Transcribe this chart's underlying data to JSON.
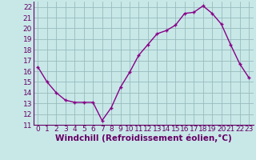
{
  "x": [
    0,
    1,
    2,
    3,
    4,
    5,
    6,
    7,
    8,
    9,
    10,
    11,
    12,
    13,
    14,
    15,
    16,
    17,
    18,
    19,
    20,
    21,
    22,
    23
  ],
  "y": [
    16.4,
    15.0,
    14.0,
    13.3,
    13.1,
    13.1,
    13.1,
    11.4,
    12.6,
    14.5,
    15.9,
    17.5,
    18.5,
    19.5,
    19.8,
    20.3,
    21.4,
    21.5,
    22.1,
    21.4,
    20.4,
    18.5,
    16.7,
    15.4
  ],
  "line_color": "#880088",
  "marker": "+",
  "bg_color": "#c8e8e8",
  "grid_color": "#99bbbb",
  "xlabel": "Windchill (Refroidissement éolien,°C)",
  "ylim": [
    11,
    22.5
  ],
  "xlim": [
    -0.5,
    23.5
  ],
  "yticks": [
    11,
    12,
    13,
    14,
    15,
    16,
    17,
    18,
    19,
    20,
    21,
    22
  ],
  "xticks": [
    0,
    1,
    2,
    3,
    4,
    5,
    6,
    7,
    8,
    9,
    10,
    11,
    12,
    13,
    14,
    15,
    16,
    17,
    18,
    19,
    20,
    21,
    22,
    23
  ],
  "font_color": "#660066",
  "tick_fontsize": 6.5,
  "xlabel_fontsize": 7.5,
  "linewidth": 1.0,
  "markersize": 3.5,
  "markeredgewidth": 1.0
}
